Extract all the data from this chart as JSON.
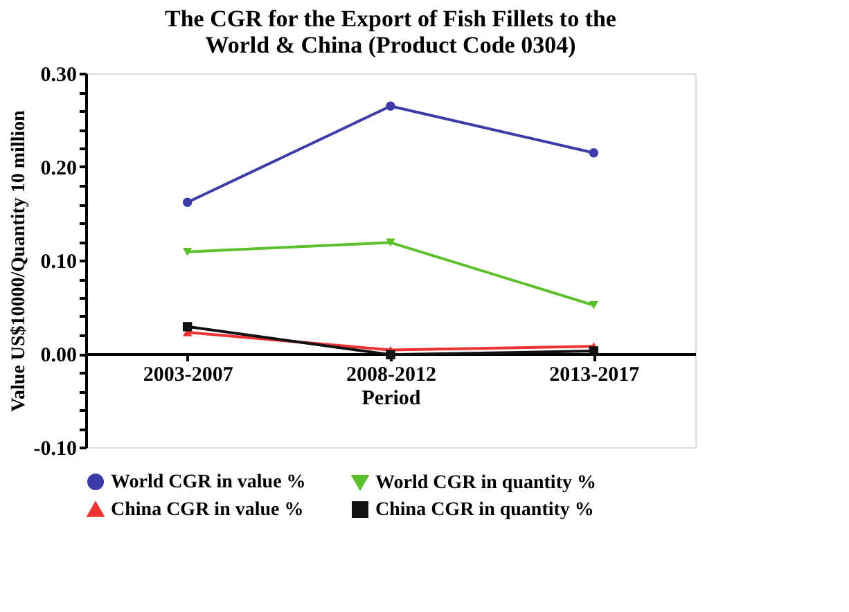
{
  "chart_data": {
    "type": "line",
    "title": "The CGR for the Export of Fish Fillets to the World & China (Product Code 0304)",
    "xlabel": "Period",
    "ylabel": "Value US$10000/Quantity 10 million",
    "categories": [
      "2003-2007",
      "2008-2012",
      "2013-2017"
    ],
    "series": [
      {
        "name": "World CGR in value %",
        "color": "#3c3ca8",
        "marker": "circle",
        "values": [
          0.162,
          0.265,
          0.215
        ]
      },
      {
        "name": "World CGR in quantity %",
        "color": "#5cc02c",
        "marker": "triangle-down",
        "values": [
          0.109,
          0.119,
          0.052
        ]
      },
      {
        "name": "China CGR in value %",
        "color": "#ee3333",
        "marker": "triangle",
        "values": [
          0.023,
          0.004,
          0.008
        ]
      },
      {
        "name": "China CGR in quantity %",
        "color": "#111111",
        "marker": "square",
        "values": [
          0.029,
          -0.001,
          0.003
        ]
      }
    ],
    "ylim": [
      -0.1,
      0.3
    ],
    "yticks": [
      {
        "value": -0.1,
        "label": "-0.10"
      },
      {
        "value": -0.08,
        "label": null
      },
      {
        "value": -0.06,
        "label": null
      },
      {
        "value": -0.04,
        "label": null
      },
      {
        "value": -0.02,
        "label": null
      },
      {
        "value": 0,
        "label": "0.00"
      },
      {
        "value": 0.02,
        "label": null
      },
      {
        "value": 0.04,
        "label": null
      },
      {
        "value": 0.06,
        "label": null
      },
      {
        "value": 0.08,
        "label": null
      },
      {
        "value": 0.1,
        "label": "0.10"
      },
      {
        "value": 0.12,
        "label": null
      },
      {
        "value": 0.14,
        "label": null
      },
      {
        "value": 0.16,
        "label": null
      },
      {
        "value": 0.18,
        "label": null
      },
      {
        "value": 0.2,
        "label": "0.20"
      },
      {
        "value": 0.22,
        "label": null
      },
      {
        "value": 0.24,
        "label": null
      },
      {
        "value": 0.26,
        "label": null
      },
      {
        "value": 0.28,
        "label": null
      },
      {
        "value": 0.3,
        "label": "0.30"
      }
    ],
    "grid": false,
    "legend": "bottom"
  }
}
